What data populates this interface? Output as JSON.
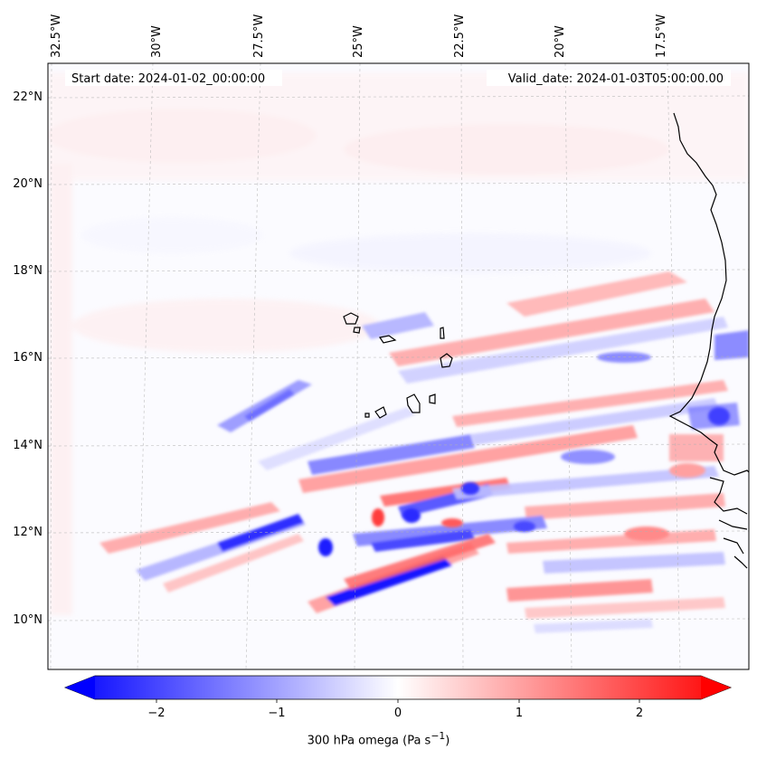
{
  "header": {
    "start_date": "Start date: 2024-01-02_00:00:00",
    "valid_date": "Valid_date: 2024-01-03T05:00:00.00"
  },
  "map": {
    "projection_note_visible": false,
    "lon_labels": [
      "32.5°W",
      "30°W",
      "27.5°W",
      "25°W",
      "22.5°W",
      "20°W",
      "17.5°W"
    ],
    "lat_labels": [
      "22°N",
      "20°N",
      "18°N",
      "16°N",
      "14°N",
      "12°N",
      "10°N"
    ],
    "field": "300 hPa vertical velocity (omega)"
  },
  "colorbar": {
    "label_html": "300 hPa omega (Pa s<sup>−1</sup>)",
    "ticks": [
      "−2",
      "−1",
      "0",
      "1",
      "2"
    ],
    "tick_values": [
      -2,
      -1,
      0,
      1,
      2
    ],
    "range": [
      -2.5,
      2.5
    ],
    "colormap": "bwr",
    "low_color": "#0000ff",
    "mid_color": "#ffffff",
    "high_color": "#ff0000"
  }
}
